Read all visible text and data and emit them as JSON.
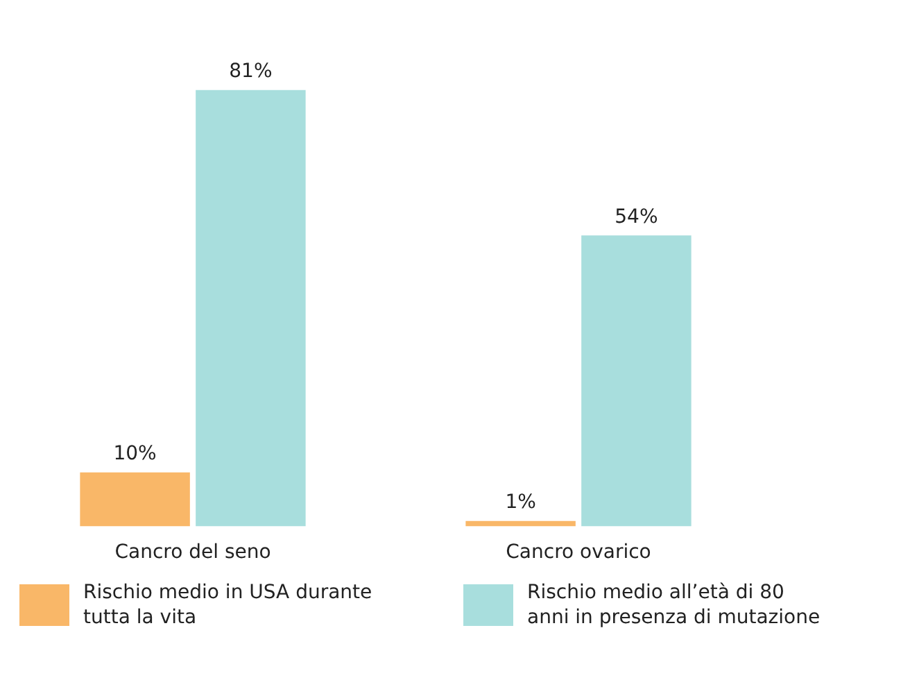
{
  "chart_data": {
    "type": "bar",
    "categories": [
      "Cancro del seno",
      "Cancro ovarico"
    ],
    "series": [
      {
        "name": "Rischio medio in USA durante tutta la vita",
        "color": "#f9b768",
        "values": [
          10,
          1
        ],
        "value_labels": [
          "10%",
          "1%"
        ]
      },
      {
        "name": "Rischio medio all’età di 80 anni in presenza di mutazione",
        "color": "#a8dedd",
        "values": [
          81,
          54
        ],
        "value_labels": [
          "81%",
          "54%"
        ]
      }
    ],
    "legend": "bottom"
  }
}
